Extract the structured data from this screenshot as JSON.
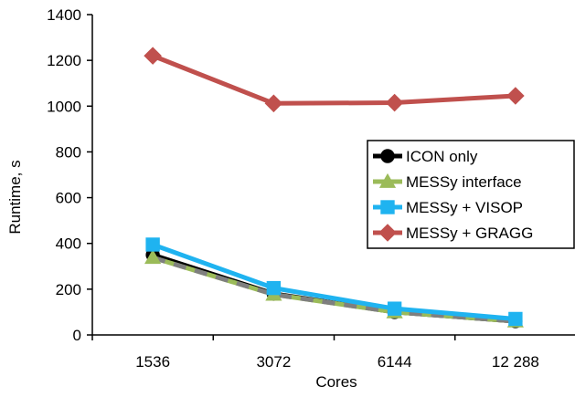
{
  "chart_data": {
    "type": "line",
    "title": "",
    "xlabel": "Cores",
    "ylabel": "Runtime, s",
    "categories": [
      "1536",
      "3072",
      "6144",
      "12 288"
    ],
    "ylim": [
      0,
      1400
    ],
    "yticks": [
      0,
      200,
      400,
      600,
      800,
      1000,
      1200,
      1400
    ],
    "grid": false,
    "legend_position": "right",
    "series": [
      {
        "name": "ICON only",
        "values": [
          350,
          180,
          100,
          60
        ],
        "color": "#000000",
        "marker": "circle",
        "dash": "none"
      },
      {
        "name": "MESSy interface",
        "values": [
          338,
          177,
          100,
          60
        ],
        "color": "#9BBB59",
        "marker": "triangle",
        "dash": "dashed",
        "dash_color": "#7F7F7F"
      },
      {
        "name": "MESSy + VISOP",
        "values": [
          395,
          205,
          115,
          70
        ],
        "color": "#1FB3F0",
        "marker": "square",
        "dash": "none"
      },
      {
        "name": "MESSy + GRAGG",
        "values": [
          1220,
          1012,
          1015,
          1045
        ],
        "color": "#C0504D",
        "marker": "diamond",
        "dash": "none"
      }
    ]
  }
}
